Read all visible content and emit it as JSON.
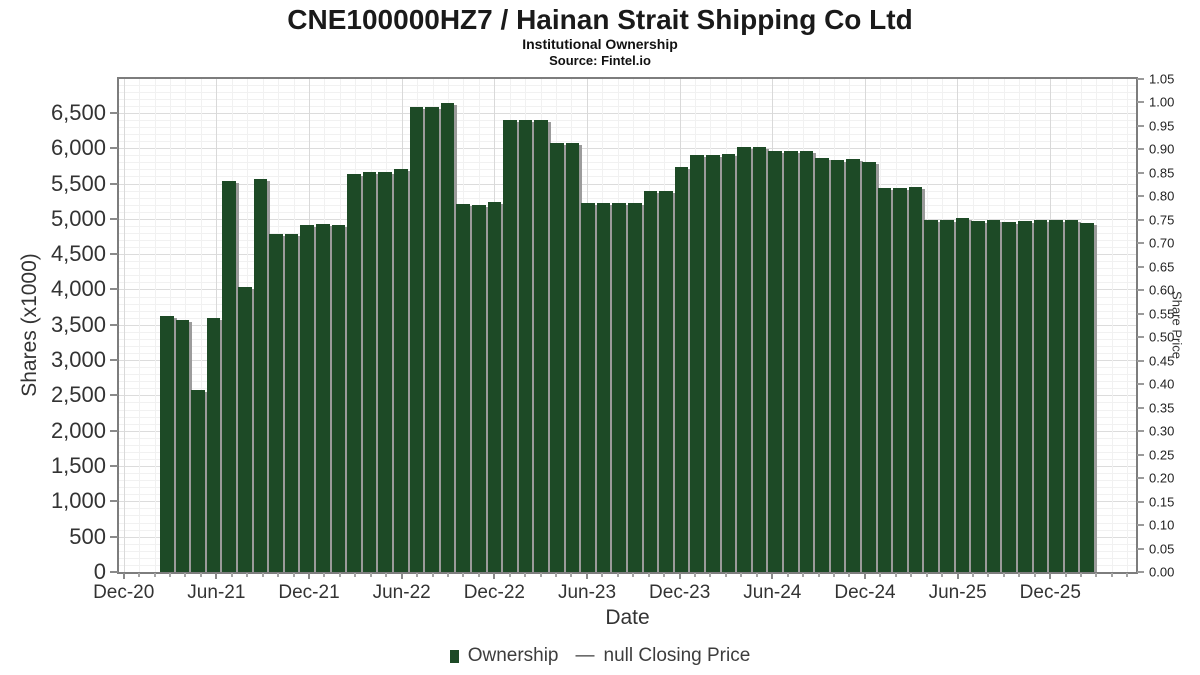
{
  "chart": {
    "title": "CNE100000HZ7 / Hainan Strait Shipping Co Ltd",
    "subtitle": "Institutional Ownership",
    "source": "Source: Fintel.io",
    "xlabel": "Date",
    "ylabel": "Shares (x1000)",
    "y2label": "Share Price",
    "legend": {
      "ownership_label": "Ownership",
      "price_dash": "—",
      "price_label": "null Closing Price"
    }
  },
  "chart_data": {
    "type": "bar",
    "title": "CNE100000HZ7 / Hainan Strait Shipping Co Ltd",
    "subtitle": "Institutional Ownership",
    "source": "Source: Fintel.io",
    "xlabel": "Date",
    "ylabel_left": "Shares (x1000)",
    "ylabel_right": "Share Price",
    "x_tick_labels": [
      "Dec-20",
      "Jun-21",
      "Dec-21",
      "Jun-22",
      "Dec-22",
      "Jun-23",
      "Dec-23",
      "Jun-24",
      "Dec-24",
      "Jun-25",
      "Dec-25"
    ],
    "y_left_ticks": [
      0,
      500,
      1000,
      1500,
      2000,
      2500,
      3000,
      3500,
      4000,
      4500,
      5000,
      5500,
      6000,
      6500
    ],
    "y_left_lim": [
      0,
      6980
    ],
    "y_right_ticks": [
      "0.00",
      "0.05",
      "0.10",
      "0.15",
      "0.20",
      "0.25",
      "0.30",
      "0.35",
      "0.40",
      "0.45",
      "0.50",
      "0.55",
      "0.60",
      "0.65",
      "0.70",
      "0.75",
      "0.80",
      "0.85",
      "0.90",
      "0.95",
      "1.00",
      "1.05"
    ],
    "grid": "major and minor, both axes",
    "legend_position": "bottom center",
    "series": [
      {
        "name": "Ownership",
        "type": "bar",
        "color": "#1d4a26",
        "shadow_color": "#9b9b9b",
        "first_bar_month": "Mar-21",
        "frequency": "monthly",
        "values": [
          3630,
          3570,
          2580,
          3600,
          5530,
          4030,
          5570,
          4780,
          4780,
          4920,
          4930,
          4920,
          5640,
          5660,
          5660,
          5710,
          6590,
          6590,
          6640,
          5210,
          5200,
          5240,
          6400,
          6400,
          6400,
          6080,
          6080,
          5230,
          5230,
          5230,
          5230,
          5400,
          5400,
          5740,
          5910,
          5900,
          5920,
          6020,
          6020,
          5960,
          5960,
          5960,
          5860,
          5840,
          5850,
          5800,
          5430,
          5430,
          5450,
          4990,
          4990,
          5010,
          4970,
          4980,
          4950,
          4970,
          4980,
          4980,
          4980,
          4940
        ]
      },
      {
        "name": "null Closing Price",
        "type": "line",
        "color": "#3d3d3d",
        "values": []
      }
    ]
  }
}
